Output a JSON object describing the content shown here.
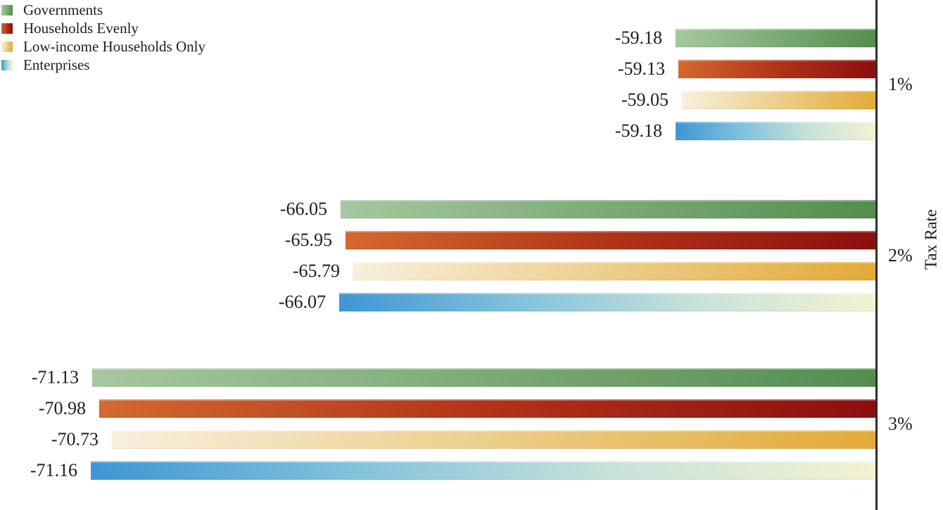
{
  "figure": {
    "background": "#ffffff"
  },
  "legend": {
    "position": "top-left",
    "items": [
      {
        "label": "Governments"
      },
      {
        "label": "Households Evenly"
      },
      {
        "label": "Low-income Households Only"
      },
      {
        "label": "Enterprises"
      }
    ]
  },
  "axis": {
    "title": "Tax Rate",
    "side": "right",
    "line_color": "#2e2e2e",
    "tick_labels": [
      "1%",
      "2%",
      "3%"
    ]
  },
  "chart_data": {
    "type": "bar",
    "orientation": "horizontal",
    "title": "",
    "xlabel": "",
    "ylabel": "Tax Rate",
    "categories": [
      "1%",
      "2%",
      "3%"
    ],
    "series": [
      {
        "name": "Governments",
        "values": [
          -59.18,
          -66.05,
          -71.13
        ],
        "gradient": [
          "#a6c79f",
          "#538e4e"
        ]
      },
      {
        "name": "Households Evenly",
        "values": [
          -59.13,
          -65.95,
          -70.98
        ],
        "gradient": [
          "#d4692e",
          "#b03418",
          "#8c0f0f"
        ]
      },
      {
        "name": "Low-income Households Only",
        "values": [
          -59.05,
          -65.79,
          -70.73
        ],
        "gradient": [
          "#f8f0dc",
          "#e2aa38"
        ]
      },
      {
        "name": "Enterprises",
        "values": [
          -59.18,
          -66.07,
          -71.16
        ],
        "gradient": [
          "#3e96d4",
          "#82c2dc",
          "#c8e2da",
          "#f2f3d2"
        ]
      }
    ],
    "value_labels": {
      "visible": true,
      "decimals": 2,
      "position": "outside-end"
    },
    "xlim": [
      -73,
      -55
    ],
    "grid": false,
    "legend_position": "top-left",
    "text_color": "#1e1e1e",
    "axis_line_color": "#2e2e2e"
  }
}
